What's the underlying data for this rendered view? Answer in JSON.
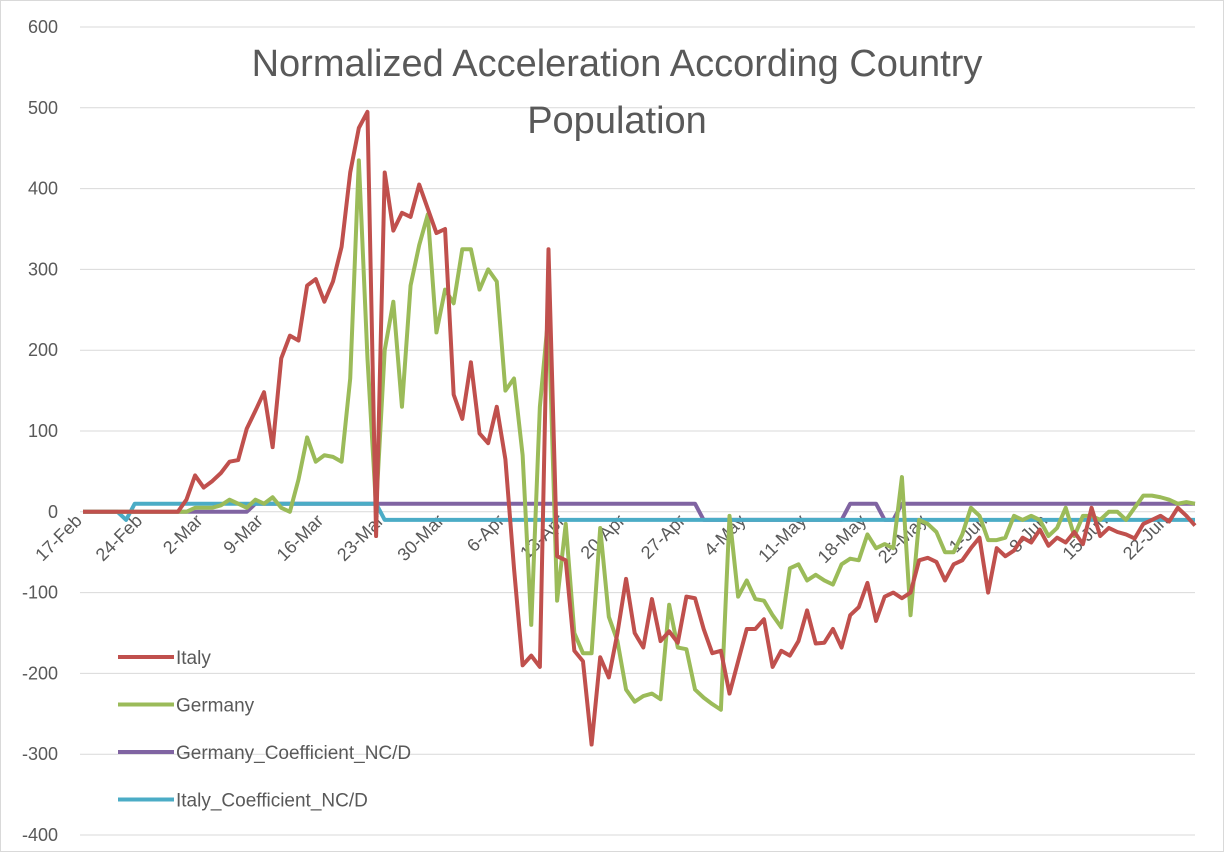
{
  "chart_data": {
    "type": "line",
    "title": "Normalized Acceleration According Country Population",
    "categories": [
      "17-Feb",
      null,
      null,
      null,
      null,
      null,
      null,
      "24-Feb",
      null,
      null,
      null,
      null,
      null,
      null,
      "2-Mar",
      null,
      null,
      null,
      null,
      null,
      null,
      "9-Mar",
      null,
      null,
      null,
      null,
      null,
      null,
      "16-Mar",
      null,
      null,
      null,
      null,
      null,
      null,
      "23-Mar",
      null,
      null,
      null,
      null,
      null,
      null,
      "30-Mar",
      null,
      null,
      null,
      null,
      null,
      null,
      "6-Apr",
      null,
      null,
      null,
      null,
      null,
      null,
      "13-Apr",
      null,
      null,
      null,
      null,
      null,
      null,
      "20-Apr",
      null,
      null,
      null,
      null,
      null,
      null,
      "27-Apr",
      null,
      null,
      null,
      null,
      null,
      null,
      "4-May",
      null,
      null,
      null,
      null,
      null,
      null,
      "11-May",
      null,
      null,
      null,
      null,
      null,
      null,
      "18-May",
      null,
      null,
      null,
      null,
      null,
      null,
      "25-May",
      null,
      null,
      null,
      null,
      null,
      null,
      "1-Jun",
      null,
      null,
      null,
      null,
      null,
      null,
      "8-Jun",
      null,
      null,
      null,
      null,
      null,
      null,
      "15-Jun",
      null,
      null,
      null,
      null,
      null,
      null,
      "22-Jun",
      null,
      null,
      null
    ],
    "series": [
      {
        "name": "Italy",
        "color": "#c0504d",
        "values": [
          0,
          0,
          0,
          0,
          0,
          0,
          0,
          0,
          0,
          0,
          0,
          0,
          15,
          45,
          30,
          38,
          48,
          62,
          64,
          103,
          125,
          148,
          80,
          190,
          218,
          212,
          280,
          288,
          260,
          285,
          328,
          420,
          475,
          495,
          -30,
          420,
          348,
          370,
          365,
          405,
          375,
          345,
          350,
          145,
          115,
          185,
          97,
          85,
          130,
          65,
          -70,
          -190,
          -178,
          -192,
          325,
          -55,
          -60,
          -172,
          -185,
          -288,
          -180,
          -205,
          -150,
          -83,
          -150,
          -168,
          -108,
          -160,
          -148,
          -162,
          -105,
          -107,
          -145,
          -175,
          -172,
          -225,
          -185,
          -145,
          -145,
          -133,
          -192,
          -172,
          -178,
          -160,
          -122,
          -163,
          -162,
          -145,
          -168,
          -128,
          -118,
          -88,
          -135,
          -105,
          -100,
          -107,
          -100,
          -60,
          -57,
          -62,
          -85,
          -65,
          -60,
          -45,
          -32,
          -100,
          -45,
          -55,
          -48,
          -32,
          -38,
          -22,
          -42,
          -32,
          -38,
          -25,
          -40,
          5,
          -30,
          -20,
          -25,
          -28,
          -33,
          -15,
          -10,
          -5,
          -12,
          5,
          -5,
          -17
        ]
      },
      {
        "name": "Germany",
        "color": "#9bbb59",
        "values": [
          0,
          0,
          0,
          0,
          0,
          0,
          0,
          0,
          0,
          0,
          0,
          0,
          0,
          5,
          5,
          5,
          8,
          15,
          10,
          5,
          15,
          10,
          18,
          5,
          0,
          40,
          92,
          62,
          70,
          68,
          62,
          165,
          435,
          190,
          5,
          200,
          260,
          130,
          280,
          330,
          368,
          222,
          275,
          258,
          325,
          325,
          275,
          300,
          285,
          150,
          165,
          70,
          -140,
          130,
          245,
          -110,
          -15,
          -150,
          -175,
          -175,
          -20,
          -130,
          -160,
          -220,
          -235,
          -228,
          -225,
          -232,
          -115,
          -168,
          -170,
          -220,
          -230,
          -238,
          -245,
          -5,
          -105,
          -85,
          -108,
          -110,
          -128,
          -143,
          -70,
          -65,
          -85,
          -78,
          -85,
          -90,
          -65,
          -58,
          -60,
          -28,
          -45,
          -40,
          -45,
          43,
          -128,
          -10,
          -15,
          -25,
          -50,
          -50,
          -28,
          5,
          -5,
          -35,
          -35,
          -32,
          -5,
          -10,
          -5,
          -10,
          -30,
          -20,
          5,
          -30,
          -5,
          -5,
          -10,
          0,
          0,
          -10,
          5,
          20,
          20,
          18,
          15,
          10,
          12,
          10
        ]
      },
      {
        "name": "Germany_Coefficient_NC/D",
        "color": "#8064a2",
        "values": [
          0,
          0,
          0,
          0,
          0,
          0,
          0,
          0,
          0,
          0,
          0,
          0,
          0,
          0,
          0,
          0,
          0,
          0,
          0,
          0,
          10,
          10,
          10,
          10,
          10,
          10,
          10,
          10,
          10,
          10,
          10,
          10,
          10,
          10,
          10,
          10,
          10,
          10,
          10,
          10,
          10,
          10,
          10,
          10,
          10,
          10,
          10,
          10,
          10,
          10,
          10,
          10,
          10,
          10,
          10,
          10,
          10,
          10,
          10,
          10,
          10,
          10,
          10,
          10,
          10,
          10,
          10,
          10,
          10,
          10,
          10,
          10,
          -10,
          -10,
          -10,
          -10,
          -10,
          -10,
          -10,
          -10,
          -10,
          -10,
          -10,
          -10,
          -10,
          -10,
          -10,
          -10,
          -10,
          10,
          10,
          10,
          10,
          -10,
          -10,
          10,
          10,
          10,
          10,
          10,
          10,
          10,
          10,
          10,
          10,
          10,
          10,
          10,
          10,
          10,
          10,
          10,
          10,
          10,
          10,
          10,
          10,
          10,
          10,
          10,
          10,
          10,
          10,
          10,
          10,
          10,
          10,
          10,
          10,
          10
        ]
      },
      {
        "name": "Italy_Coefficient_NC/D",
        "color": "#4bacc6",
        "values": [
          0,
          0,
          0,
          0,
          0,
          -10,
          10,
          10,
          10,
          10,
          10,
          10,
          10,
          10,
          10,
          10,
          10,
          10,
          10,
          10,
          10,
          10,
          10,
          10,
          10,
          10,
          10,
          10,
          10,
          10,
          10,
          10,
          10,
          10,
          10,
          -10,
          -10,
          -10,
          -10,
          -10,
          -10,
          -10,
          -10,
          -10,
          -10,
          -10,
          -10,
          -10,
          -10,
          -10,
          -10,
          -10,
          -10,
          -10,
          -10,
          -10,
          -10,
          -10,
          -10,
          -10,
          -10,
          -10,
          -10,
          -10,
          -10,
          -10,
          -10,
          -10,
          -10,
          -10,
          -10,
          -10,
          -10,
          -10,
          -10,
          -10,
          -10,
          -10,
          -10,
          -10,
          -10,
          -10,
          -10,
          -10,
          -10,
          -10,
          -10,
          -10,
          -10,
          -10,
          -10,
          -10,
          -10,
          -10,
          -10,
          -10,
          -10,
          -10,
          -10,
          -10,
          -10,
          -10,
          -10,
          -10,
          -10,
          -10,
          -10,
          -10,
          -10,
          -10,
          -10,
          -10,
          -10,
          -10,
          -10,
          -10,
          -10,
          -10,
          -10,
          -10,
          -10,
          -10,
          -10,
          -10,
          -10,
          -10,
          -10,
          -10,
          -10,
          -10
        ]
      }
    ],
    "ylim": [
      -400,
      600
    ],
    "yticks": [
      -400,
      -300,
      -200,
      -100,
      0,
      100,
      200,
      300,
      400,
      500,
      600
    ],
    "grid": true,
    "legend": "lower left"
  }
}
